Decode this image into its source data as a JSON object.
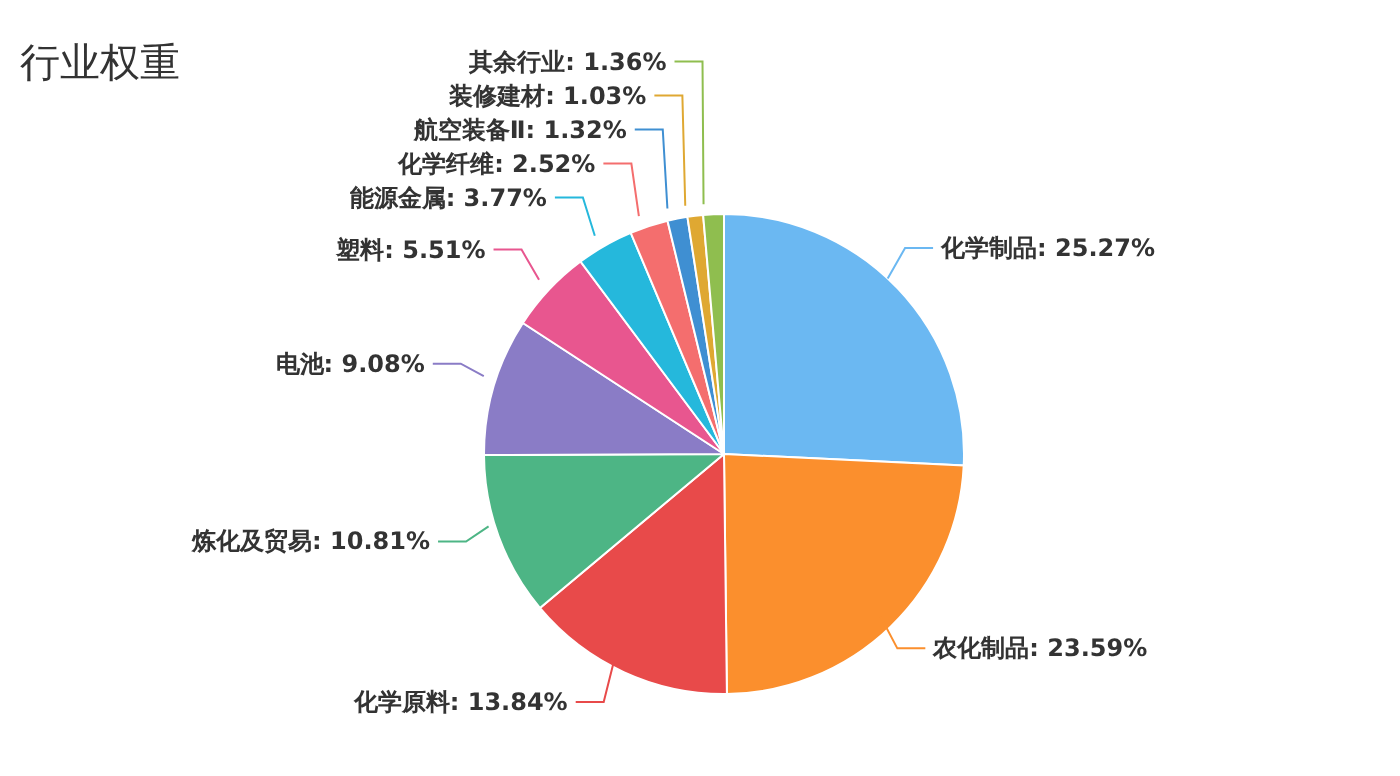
{
  "chart_data": {
    "type": "pie",
    "title": "行业权重",
    "categories": [
      "化学制品",
      "农化制品",
      "化学原料",
      "炼化及贸易",
      "电池",
      "塑料",
      "能源金属",
      "化学纤维",
      "航空装备Ⅱ",
      "装修建材",
      "其余行业"
    ],
    "values": [
      25.27,
      23.59,
      13.84,
      10.81,
      9.08,
      5.51,
      3.77,
      2.52,
      1.32,
      1.03,
      1.36
    ],
    "value_labels": [
      "25.27%",
      "23.59%",
      "13.84%",
      "10.81%",
      "9.08%",
      "5.51%",
      "3.77%",
      "2.52%",
      "1.32%",
      "1.03%",
      "1.36%"
    ],
    "colors": [
      "#6bb8f2",
      "#fb8f2d",
      "#e84a4a",
      "#4db585",
      "#8a7cc6",
      "#e8568f",
      "#25b8dc",
      "#f46e6e",
      "#3f8fd2",
      "#dfa832",
      "#8fbe4f"
    ]
  }
}
